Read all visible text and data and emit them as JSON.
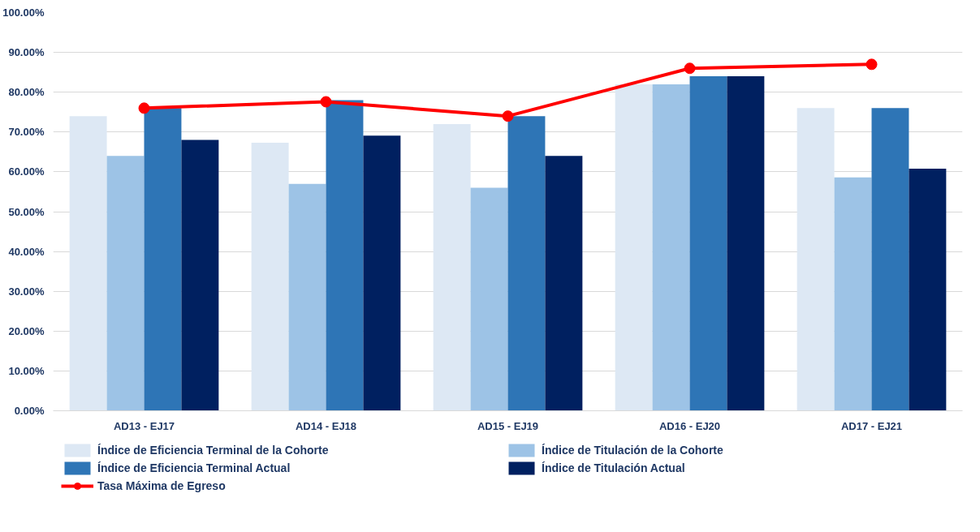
{
  "chart_data": {
    "type": "bar",
    "categories": [
      "AD13 - EJ17",
      "AD14 - EJ18",
      "AD15 - EJ19",
      "AD16 - EJ20",
      "AD17 - EJ21"
    ],
    "series": [
      {
        "name": "Índice de Eficiencia Terminal de la Cohorte",
        "color": "#dde8f4",
        "values": [
          74,
          67.3,
          72,
          82,
          76
        ]
      },
      {
        "name": "Índice de Titulación de la Cohorte",
        "color": "#9dc3e6",
        "values": [
          64,
          57,
          56,
          82,
          58.6
        ]
      },
      {
        "name": "Índice de Eficiencia Terminal Actual",
        "color": "#2e75b6",
        "values": [
          76,
          78,
          74,
          84,
          76
        ]
      },
      {
        "name": "Índice de Titulación Actual",
        "color": "#002060",
        "values": [
          68,
          69.1,
          64,
          84,
          60.8
        ]
      },
      {
        "name": "Tasa Máxima de Egreso",
        "color": "#ff0000",
        "type": "line",
        "marker": "circle",
        "values": [
          76,
          77.6,
          74,
          86,
          87
        ]
      }
    ],
    "ylim": [
      0,
      100
    ],
    "yticks": [
      {
        "value": 0,
        "label": "0.00%"
      },
      {
        "value": 10,
        "label": "10.00%"
      },
      {
        "value": 20,
        "label": "20.00%"
      },
      {
        "value": 30,
        "label": "30.00%"
      },
      {
        "value": 40,
        "label": "40.00%"
      },
      {
        "value": 50,
        "label": "50.00%"
      },
      {
        "value": 60,
        "label": "60.00%"
      },
      {
        "value": 70,
        "label": "70.00%"
      },
      {
        "value": 80,
        "label": "80.00%"
      },
      {
        "value": 90,
        "label": "90.00%"
      },
      {
        "value": 100,
        "label": "100.00%"
      }
    ],
    "grid": "y",
    "legend": "bottom"
  }
}
